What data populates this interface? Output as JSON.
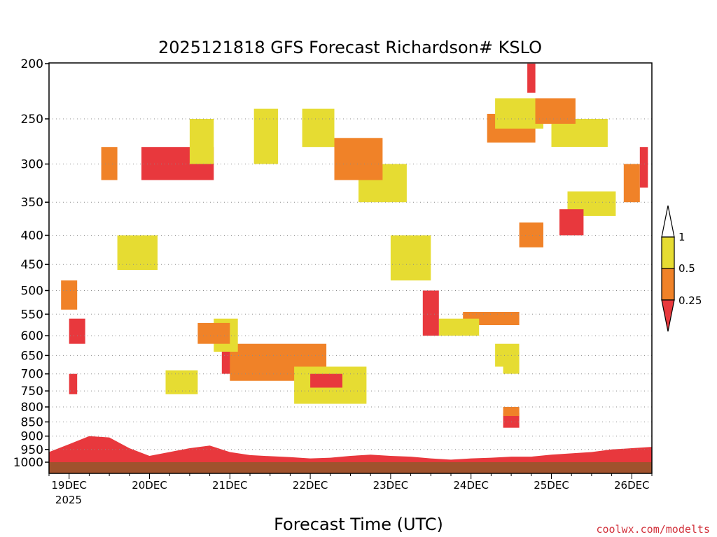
{
  "chart_data": {
    "type": "heatmap",
    "title": "2025121818 GFS Forecast Richardson# KSLO",
    "xlabel": "Forecast Time (UTC)",
    "ylabel": "",
    "y_scale": "log",
    "y_reversed": true,
    "ylim": [
      200,
      1000
    ],
    "y_ticks": [
      200,
      250,
      300,
      350,
      400,
      450,
      500,
      550,
      600,
      650,
      700,
      750,
      800,
      850,
      900,
      950,
      1000
    ],
    "y_tick_labels": [
      "200",
      "250",
      "300",
      "350",
      "400",
      "450",
      "500",
      "550",
      "600",
      "650",
      "700",
      "750",
      "800",
      "850",
      "900",
      "950",
      "1000"
    ],
    "xlim": [
      "2025-12-18T18:00Z",
      "2025-12-26T06:00Z"
    ],
    "x_ticks": [
      "19DEC",
      "20DEC",
      "21DEC",
      "22DEC",
      "23DEC",
      "24DEC",
      "25DEC",
      "26DEC"
    ],
    "x_year_label": "2025",
    "grid": "dotted horizontal lines at pressure levels",
    "legend": {
      "placement": "right",
      "bins": [
        {
          "range": "< 0.25",
          "color": "#e8383d"
        },
        {
          "range": "0.25 - 0.5",
          "color": "#f08228"
        },
        {
          "range": "0.5 - 1",
          "color": "#e6dc32"
        },
        {
          "range": "> 1",
          "color": "#ffffff"
        }
      ],
      "labels": [
        "1",
        "0.5",
        "0.25"
      ]
    },
    "ground_color": "#a0522d",
    "regions": [
      {
        "t": [
          19.9,
          20.8
        ],
        "p": [
          280,
          320
        ],
        "bin": "< 0.25"
      },
      {
        "t": [
          20.9,
          21.5
        ],
        "p": [
          640,
          700
        ],
        "bin": "< 0.25"
      },
      {
        "t": [
          21.0,
          22.2
        ],
        "p": [
          620,
          720
        ],
        "bin": "0.25 - 0.5"
      },
      {
        "t": [
          21.8,
          22.7
        ],
        "p": [
          680,
          790
        ],
        "bin": "0.5 - 1"
      },
      {
        "t": [
          22.0,
          22.4
        ],
        "p": [
          700,
          740
        ],
        "bin": "< 0.25"
      },
      {
        "t": [
          19.3,
          19.6
        ],
        "p": [
          950,
          1000
        ],
        "bin": "< 0.25"
      },
      {
        "t": [
          24.2,
          24.8
        ],
        "p": [
          245,
          275
        ],
        "bin": "0.25 - 0.5"
      },
      {
        "t": [
          24.3,
          24.9
        ],
        "p": [
          230,
          260
        ],
        "bin": "0.5 - 1"
      },
      {
        "t": [
          25.0,
          25.7
        ],
        "p": [
          250,
          280
        ],
        "bin": "0.5 - 1"
      },
      {
        "t": [
          24.7,
          24.8
        ],
        "p": [
          200,
          225
        ],
        "bin": "< 0.25"
      },
      {
        "t": [
          24.8,
          25.3
        ],
        "p": [
          230,
          255
        ],
        "bin": "0.25 - 0.5"
      },
      {
        "t": [
          25.2,
          25.8
        ],
        "p": [
          335,
          370
        ],
        "bin": "0.5 - 1"
      },
      {
        "t": [
          25.1,
          25.4
        ],
        "p": [
          360,
          400
        ],
        "bin": "< 0.25"
      },
      {
        "t": [
          23.9,
          24.6
        ],
        "p": [
          545,
          575
        ],
        "bin": "0.25 - 0.5"
      },
      {
        "t": [
          23.6,
          24.1
        ],
        "p": [
          560,
          600
        ],
        "bin": "0.5 - 1"
      },
      {
        "t": [
          24.3,
          24.6
        ],
        "p": [
          620,
          680
        ],
        "bin": "0.5 - 1"
      },
      {
        "t": [
          23.4,
          23.6
        ],
        "p": [
          500,
          600
        ],
        "bin": "< 0.25"
      },
      {
        "t": [
          22.6,
          23.2
        ],
        "p": [
          300,
          350
        ],
        "bin": "0.5 - 1"
      },
      {
        "t": [
          23.0,
          23.5
        ],
        "p": [
          400,
          480
        ],
        "bin": "0.5 - 1"
      },
      {
        "t": [
          21.3,
          21.6
        ],
        "p": [
          240,
          300
        ],
        "bin": "0.5 - 1"
      },
      {
        "t": [
          21.9,
          22.3
        ],
        "p": [
          240,
          280
        ],
        "bin": "0.5 - 1"
      },
      {
        "t": [
          22.3,
          22.9
        ],
        "p": [
          270,
          320
        ],
        "bin": "0.25 - 0.5"
      },
      {
        "t": [
          20.5,
          20.8
        ],
        "p": [
          250,
          300
        ],
        "bin": "0.5 - 1"
      },
      {
        "t": [
          19.4,
          19.6
        ],
        "p": [
          280,
          320
        ],
        "bin": "0.25 - 0.5"
      },
      {
        "t": [
          20.2,
          20.6
        ],
        "p": [
          690,
          760
        ],
        "bin": "0.5 - 1"
      },
      {
        "t": [
          20.8,
          21.1
        ],
        "p": [
          560,
          640
        ],
        "bin": "0.5 - 1"
      },
      {
        "t": [
          20.6,
          21.0
        ],
        "p": [
          570,
          620
        ],
        "bin": "0.25 - 0.5"
      },
      {
        "t": [
          18.9,
          19.1
        ],
        "p": [
          480,
          540
        ],
        "bin": "0.25 - 0.5"
      },
      {
        "t": [
          19.0,
          19.2
        ],
        "p": [
          560,
          620
        ],
        "bin": "< 0.25"
      },
      {
        "t": [
          19.0,
          19.1
        ],
        "p": [
          700,
          760
        ],
        "bin": "< 0.25"
      },
      {
        "t": [
          19.6,
          20.1
        ],
        "p": [
          400,
          460
        ],
        "bin": "0.5 - 1"
      },
      {
        "t": [
          25.9,
          26.1
        ],
        "p": [
          300,
          350
        ],
        "bin": "0.25 - 0.5"
      },
      {
        "t": [
          26.1,
          26.2
        ],
        "p": [
          280,
          330
        ],
        "bin": "< 0.25"
      },
      {
        "t": [
          24.6,
          24.9
        ],
        "p": [
          380,
          420
        ],
        "bin": "0.25 - 0.5"
      },
      {
        "t": [
          24.4,
          24.6
        ],
        "p": [
          640,
          700
        ],
        "bin": "0.5 - 1"
      },
      {
        "t": [
          24.4,
          24.6
        ],
        "p": [
          820,
          870
        ],
        "bin": "< 0.25"
      },
      {
        "t": [
          24.4,
          24.6
        ],
        "p": [
          800,
          830
        ],
        "bin": "0.25 - 0.5"
      }
    ],
    "surface_layer": [
      {
        "t": 18.75,
        "top_hpa": 960
      },
      {
        "t": 19.0,
        "top_hpa": 930
      },
      {
        "t": 19.25,
        "top_hpa": 900
      },
      {
        "t": 19.5,
        "top_hpa": 905
      },
      {
        "t": 19.75,
        "top_hpa": 945
      },
      {
        "t": 20.0,
        "top_hpa": 975
      },
      {
        "t": 20.25,
        "top_hpa": 960
      },
      {
        "t": 20.5,
        "top_hpa": 945
      },
      {
        "t": 20.75,
        "top_hpa": 935
      },
      {
        "t": 21.0,
        "top_hpa": 960
      },
      {
        "t": 21.25,
        "top_hpa": 972
      },
      {
        "t": 21.5,
        "top_hpa": 976
      },
      {
        "t": 21.75,
        "top_hpa": 980
      },
      {
        "t": 22.0,
        "top_hpa": 985
      },
      {
        "t": 22.25,
        "top_hpa": 982
      },
      {
        "t": 22.5,
        "top_hpa": 975
      },
      {
        "t": 22.75,
        "top_hpa": 970
      },
      {
        "t": 23.0,
        "top_hpa": 975
      },
      {
        "t": 23.25,
        "top_hpa": 978
      },
      {
        "t": 23.5,
        "top_hpa": 985
      },
      {
        "t": 23.75,
        "top_hpa": 990
      },
      {
        "t": 24.0,
        "top_hpa": 985
      },
      {
        "t": 24.25,
        "top_hpa": 982
      },
      {
        "t": 24.5,
        "top_hpa": 978
      },
      {
        "t": 24.75,
        "top_hpa": 978
      },
      {
        "t": 25.0,
        "top_hpa": 970
      },
      {
        "t": 25.25,
        "top_hpa": 965
      },
      {
        "t": 25.5,
        "top_hpa": 960
      },
      {
        "t": 25.75,
        "top_hpa": 950
      },
      {
        "t": 26.0,
        "top_hpa": 945
      },
      {
        "t": 26.25,
        "top_hpa": 940
      }
    ]
  },
  "credit": "coolwx.com/modelts",
  "credit_color": "#d2323c"
}
